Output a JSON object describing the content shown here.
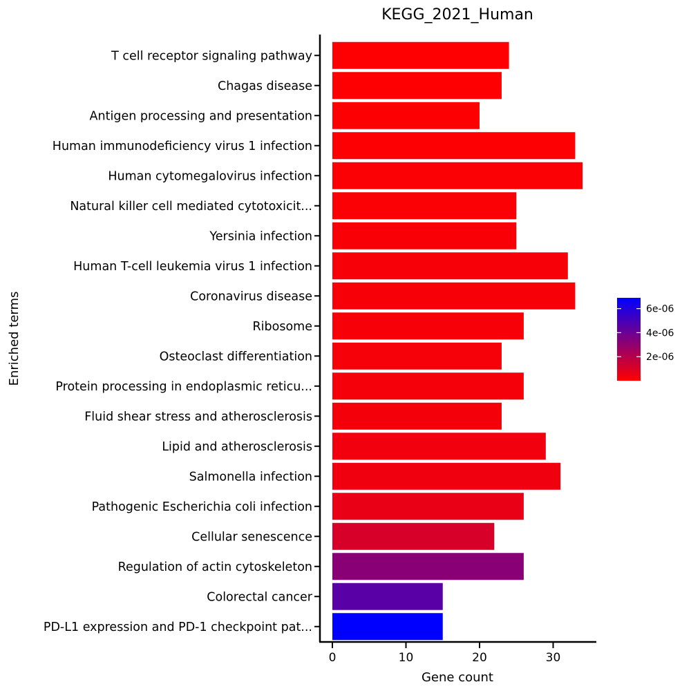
{
  "chart_data": {
    "type": "bar",
    "orientation": "horizontal",
    "title": "KEGG_2021_Human",
    "xlabel": "Gene count",
    "ylabel": "Enriched terms",
    "xlim": [
      0,
      35
    ],
    "xticks": [
      0,
      10,
      20,
      30
    ],
    "categories": [
      "T cell receptor signaling pathway",
      "Chagas disease",
      "Antigen processing and presentation",
      "Human immunodeficiency virus 1 infection",
      "Human cytomegalovirus infection",
      "Natural killer cell mediated cytotoxicit...",
      "Yersinia infection",
      "Human T-cell leukemia virus 1 infection",
      "Coronavirus disease",
      "Ribosome",
      "Osteoclast differentiation",
      "Protein processing in endoplasmic reticu...",
      "Fluid shear stress and atherosclerosis",
      "Lipid and atherosclerosis",
      "Salmonella infection",
      "Pathogenic Escherichia coli infection",
      "Cellular senescence",
      "Regulation of actin cytoskeleton",
      "Colorectal cancer",
      "PD-L1 expression and PD-1 checkpoint pat..."
    ],
    "values": [
      24,
      23,
      20,
      33,
      34,
      25,
      25,
      32,
      33,
      26,
      23,
      26,
      23,
      29,
      31,
      26,
      22,
      26,
      15,
      15
    ],
    "color_values": [
      2e-08,
      3e-08,
      5e-08,
      8e-08,
      1e-07,
      1.2e-07,
      1.5e-07,
      1.8e-07,
      2e-07,
      2.2e-07,
      2.5e-07,
      2.7e-07,
      3e-07,
      3.5e-07,
      4e-07,
      6e-07,
      1.1e-06,
      3.2e-06,
      4.5e-06,
      6.9e-06
    ],
    "colorbar": {
      "ticks": [
        "2e-06",
        "4e-06",
        "6e-06"
      ],
      "tick_values": [
        2e-06,
        4e-06,
        6e-06
      ],
      "range": [
        0,
        6.9e-06
      ],
      "low_color": "#ff0000",
      "high_color": "#0000ff"
    },
    "grid": false,
    "legend_position": "right"
  }
}
